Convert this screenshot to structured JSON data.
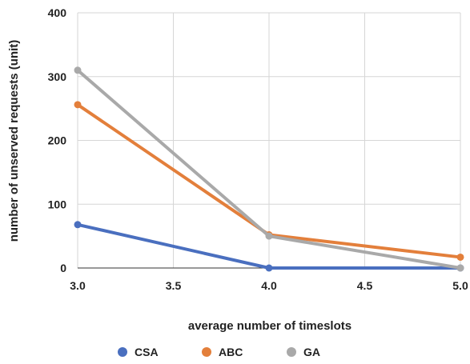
{
  "chart_data": {
    "type": "line",
    "title": "",
    "xlabel": "average number of timeslots",
    "ylabel": "number of unserved requests (unit)",
    "x": [
      3.0,
      4.0,
      5.0
    ],
    "x_ticks": [
      "3.0",
      "3.5",
      "4.0",
      "4.5",
      "5.0"
    ],
    "y_ticks": [
      "0",
      "100",
      "200",
      "300",
      "400"
    ],
    "xlim": [
      3.0,
      5.0
    ],
    "ylim": [
      0,
      400
    ],
    "grid": true,
    "legend_position": "bottom",
    "series": [
      {
        "name": "CSA",
        "color": "#4a6fbf",
        "values": [
          68,
          0,
          0
        ]
      },
      {
        "name": "ABC",
        "color": "#e37f3b",
        "values": [
          256,
          52,
          17
        ]
      },
      {
        "name": "GA",
        "color": "#a9a9a9",
        "values": [
          310,
          50,
          0
        ]
      }
    ]
  }
}
